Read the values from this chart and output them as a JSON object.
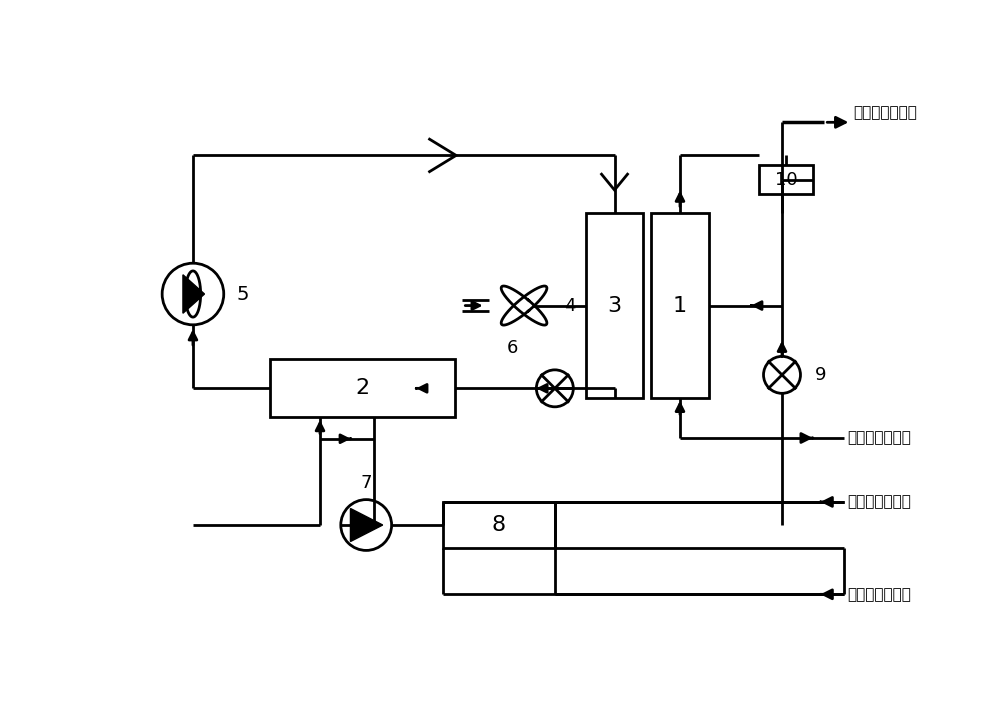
{
  "bg": "#ffffff",
  "lc": "#000000",
  "lw": 2.0,
  "fw": 10.0,
  "fh": 7.24,
  "labels": {
    "ht_supply": "高温冷却水供水",
    "lt_supply": "低温冷却水供水",
    "lt_return": "低温冷却水回水",
    "ht_return": "高温冷却水回水"
  }
}
